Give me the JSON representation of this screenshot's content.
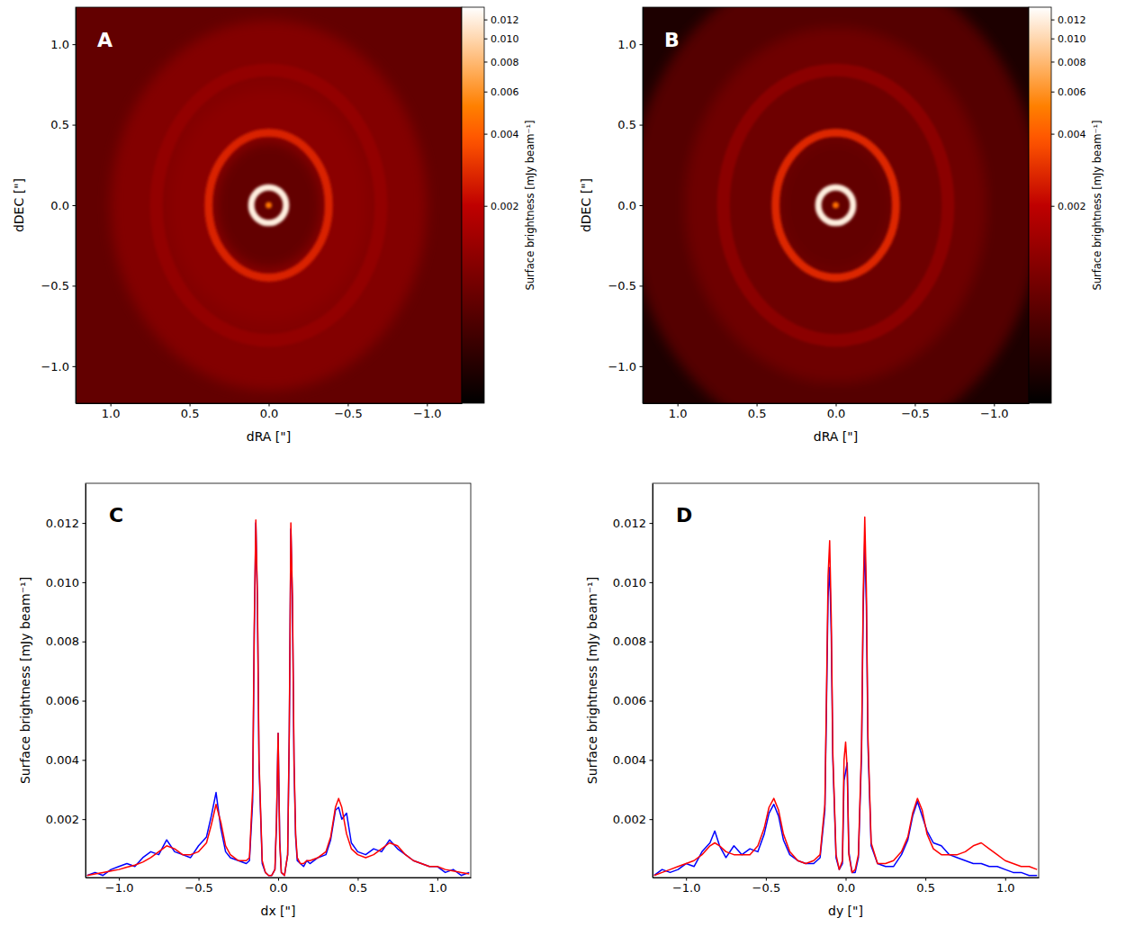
{
  "chart_data": [
    {
      "type": "heatmap",
      "title": "A",
      "xlabel": "dRA [\"]",
      "ylabel": "dDEC [\"]",
      "xlim": [
        1.22,
        -1.22
      ],
      "ylim": [
        -1.23,
        1.23
      ],
      "xticks": [
        {
          "value": 1,
          "label": "1.0"
        },
        {
          "value": 0.5,
          "label": "0.5"
        },
        {
          "value": 0,
          "label": "0.0"
        },
        {
          "value": -0.5,
          "label": "−0.5"
        },
        {
          "value": -1,
          "label": "−1.0"
        }
      ],
      "yticks": [
        {
          "value": -1,
          "label": "−1.0"
        },
        {
          "value": -0.5,
          "label": "−0.5"
        },
        {
          "value": 0,
          "label": "0.0"
        },
        {
          "value": 0.5,
          "label": "0.5"
        },
        {
          "value": 1,
          "label": "1.0"
        }
      ],
      "log": true,
      "clim": [
        0.0003,
        0.0135
      ],
      "cticks": [
        0.002,
        0.004,
        0.006,
        0.008,
        {
          "value": 0.01,
          "label": "0.010"
        },
        0.012
      ],
      "clabel": "Surface brightness [mJy beam⁻¹]",
      "background": 0.0008,
      "regions": [
        {
          "rx": 1.0,
          "ry": 1.15,
          "value": 0.0011
        },
        {
          "rx": 0.62,
          "ry": 0.72,
          "value": 0.0012
        },
        {
          "rx": 0.34,
          "ry": 0.4,
          "value": 0.0008
        }
      ],
      "rings": [
        {
          "rx": 0.71,
          "ry": 0.84,
          "width": 0.08,
          "value": 0.0013
        },
        {
          "rx": 0.38,
          "ry": 0.45,
          "width": 0.05,
          "value": 0.0026
        },
        {
          "rx": 0.11,
          "ry": 0.11,
          "width": 0.04,
          "value": 0.012
        }
      ],
      "center": {
        "r": 0.02,
        "value": 0.0049
      }
    },
    {
      "type": "heatmap",
      "title": "B",
      "xlabel": "dRA [\"]",
      "ylabel": "dDEC [\"]",
      "xlim": [
        1.22,
        -1.22
      ],
      "ylim": [
        -1.23,
        1.23
      ],
      "xticks": [
        {
          "value": 1,
          "label": "1.0"
        },
        {
          "value": 0.5,
          "label": "0.5"
        },
        {
          "value": 0,
          "label": "0.0"
        },
        {
          "value": -0.5,
          "label": "−0.5"
        },
        {
          "value": -1,
          "label": "−1.0"
        }
      ],
      "yticks": [
        {
          "value": -1,
          "label": "−1.0"
        },
        {
          "value": -0.5,
          "label": "−0.5"
        },
        {
          "value": 0,
          "label": "0.0"
        },
        {
          "value": 0.5,
          "label": "0.5"
        },
        {
          "value": 1,
          "label": "1.0"
        }
      ],
      "log": true,
      "clim": [
        0.0003,
        0.0135
      ],
      "cticks": [
        0.002,
        0.004,
        0.006,
        0.008,
        {
          "value": 0.01,
          "label": "0.010"
        },
        0.012
      ],
      "clabel": "Surface brightness [mJy beam⁻¹]",
      "background": 0.0004,
      "regions": [
        {
          "rx": 1.3,
          "ry": 1.5,
          "value": 0.0007
        },
        {
          "rx": 0.95,
          "ry": 1.1,
          "value": 0.0009
        },
        {
          "rx": 0.34,
          "ry": 0.4,
          "value": 0.0008
        }
      ],
      "rings": [
        {
          "rx": 0.71,
          "ry": 0.84,
          "width": 0.08,
          "value": 0.0012
        },
        {
          "rx": 0.38,
          "ry": 0.45,
          "width": 0.05,
          "value": 0.0027
        },
        {
          "rx": 0.11,
          "ry": 0.11,
          "width": 0.04,
          "value": 0.012
        }
      ],
      "center": {
        "r": 0.02,
        "value": 0.0046
      }
    },
    {
      "type": "line",
      "title": "C",
      "xlabel": "dx [\"]",
      "ylabel": "Surface brightness [mJy beam⁻¹]",
      "xlim": [
        -1.21,
        1.21
      ],
      "ylim": [
        3e-05,
        0.01334
      ],
      "xticks": [
        {
          "value": -1,
          "label": "−1.0"
        },
        {
          "value": -0.5,
          "label": "−0.5"
        },
        {
          "value": 0,
          "label": "0.0"
        },
        {
          "value": 0.5,
          "label": "0.5"
        },
        {
          "value": 1,
          "label": "1.0"
        }
      ],
      "yticks": [
        0.002,
        0.004,
        0.006,
        0.008,
        {
          "value": 0.01,
          "label": "0.010"
        },
        0.012
      ],
      "x": [
        -1.2,
        -1.15,
        -1.1,
        -1.05,
        -1.0,
        -0.95,
        -0.9,
        -0.85,
        -0.8,
        -0.75,
        -0.7,
        -0.65,
        -0.6,
        -0.55,
        -0.5,
        -0.45,
        -0.42,
        -0.39,
        -0.36,
        -0.33,
        -0.3,
        -0.25,
        -0.2,
        -0.18,
        -0.16,
        -0.15,
        -0.14,
        -0.13,
        -0.12,
        -0.1,
        -0.08,
        -0.06,
        -0.04,
        -0.02,
        -0.01,
        0,
        0.01,
        0.02,
        0.04,
        0.06,
        0.07,
        0.08,
        0.09,
        0.1,
        0.11,
        0.12,
        0.14,
        0.16,
        0.18,
        0.2,
        0.25,
        0.3,
        0.33,
        0.36,
        0.38,
        0.4,
        0.43,
        0.46,
        0.5,
        0.55,
        0.6,
        0.65,
        0.7,
        0.75,
        0.8,
        0.85,
        0.9,
        0.95,
        1.0,
        1.05,
        1.1,
        1.15,
        1.2
      ],
      "series": [
        {
          "color": "#0000ff",
          "values": [
            0.0001,
            0.0002,
            0.0001,
            0.0003,
            0.0004,
            0.0005,
            0.0004,
            0.0007,
            0.0009,
            0.0008,
            0.0013,
            0.0009,
            0.0008,
            0.0007,
            0.0011,
            0.0014,
            0.0021,
            0.0029,
            0.0017,
            0.0009,
            0.0007,
            0.0006,
            0.0005,
            0.0006,
            0.0026,
            0.0082,
            0.012,
            0.0093,
            0.0038,
            0.0005,
            0.0002,
            0.0001,
            0.0001,
            0.0003,
            0.0019,
            0.0049,
            0.0013,
            0.0002,
            0.0001,
            0.0008,
            0.0048,
            0.0118,
            0.0093,
            0.0038,
            0.0014,
            0.0006,
            0.0005,
            0.0004,
            0.0006,
            0.0005,
            0.0007,
            0.0008,
            0.0013,
            0.0023,
            0.0024,
            0.002,
            0.0022,
            0.0012,
            0.0009,
            0.0008,
            0.001,
            0.0009,
            0.0013,
            0.001,
            0.0008,
            0.0006,
            0.0005,
            0.0004,
            0.0004,
            0.0002,
            0.0003,
            0.0001,
            0.0002
          ]
        },
        {
          "color": "#ff0000",
          "values": [
            0.0001,
            0.00015,
            0.0002,
            0.00025,
            0.0003,
            0.00038,
            0.00045,
            0.00055,
            0.0007,
            0.0009,
            0.0011,
            0.001,
            0.0008,
            0.0008,
            0.0009,
            0.0012,
            0.0018,
            0.0025,
            0.0019,
            0.0011,
            0.0008,
            0.0006,
            0.0006,
            0.0007,
            0.003,
            0.0085,
            0.0121,
            0.0095,
            0.004,
            0.0006,
            0.0002,
            0.0001,
            0.0001,
            0.0003,
            0.002,
            0.0049,
            0.0012,
            0.0002,
            0.0001,
            0.0008,
            0.005,
            0.012,
            0.0095,
            0.004,
            0.0015,
            0.0007,
            0.0005,
            0.0005,
            0.0006,
            0.0006,
            0.0007,
            0.0009,
            0.0014,
            0.0024,
            0.0027,
            0.0024,
            0.0015,
            0.001,
            0.0008,
            0.0007,
            0.0008,
            0.001,
            0.0012,
            0.0011,
            0.0008,
            0.0006,
            0.0005,
            0.0004,
            0.0004,
            0.0003,
            0.00025,
            0.0002,
            0.00015
          ]
        }
      ]
    },
    {
      "type": "line",
      "title": "D",
      "xlabel": "dy [\"]",
      "ylabel": "Surface brightness [mJy beam⁻¹]",
      "xlim": [
        -1.21,
        1.21
      ],
      "ylim": [
        3e-05,
        0.01334
      ],
      "xticks": [
        {
          "value": -1,
          "label": "−1.0"
        },
        {
          "value": -0.5,
          "label": "−0.5"
        },
        {
          "value": 0,
          "label": "0.0"
        },
        {
          "value": 0.5,
          "label": "0.5"
        },
        {
          "value": 1,
          "label": "1.0"
        }
      ],
      "yticks": [
        0.002,
        0.004,
        0.006,
        0.008,
        {
          "value": 0.01,
          "label": "0.010"
        },
        0.012
      ],
      "x": [
        -1.2,
        -1.15,
        -1.1,
        -1.05,
        -1.0,
        -0.95,
        -0.9,
        -0.85,
        -0.82,
        -0.79,
        -0.75,
        -0.7,
        -0.65,
        -0.6,
        -0.55,
        -0.51,
        -0.48,
        -0.45,
        -0.42,
        -0.39,
        -0.35,
        -0.3,
        -0.25,
        -0.2,
        -0.16,
        -0.13,
        -0.12,
        -0.11,
        -0.1,
        -0.09,
        -0.08,
        -0.06,
        -0.04,
        -0.02,
        -0.01,
        0,
        0.01,
        0.02,
        0.04,
        0.06,
        0.08,
        0.1,
        0.11,
        0.12,
        0.13,
        0.14,
        0.16,
        0.2,
        0.25,
        0.3,
        0.35,
        0.39,
        0.42,
        0.45,
        0.48,
        0.51,
        0.55,
        0.6,
        0.65,
        0.7,
        0.75,
        0.8,
        0.85,
        0.9,
        0.95,
        1.0,
        1.05,
        1.1,
        1.15,
        1.2
      ],
      "series": [
        {
          "color": "#0000ff",
          "values": [
            0.0001,
            0.0003,
            0.0002,
            0.0003,
            0.0005,
            0.0004,
            0.0009,
            0.0012,
            0.0016,
            0.0011,
            0.0007,
            0.0011,
            0.0008,
            0.001,
            0.0009,
            0.0015,
            0.0022,
            0.0025,
            0.0021,
            0.0013,
            0.0008,
            0.0006,
            0.0005,
            0.0005,
            0.0007,
            0.0023,
            0.0058,
            0.0095,
            0.0105,
            0.0082,
            0.004,
            0.0007,
            0.0003,
            0.0005,
            0.0033,
            0.0036,
            0.0039,
            0.0009,
            0.0002,
            0.0002,
            0.0007,
            0.0042,
            0.009,
            0.0114,
            0.0092,
            0.0045,
            0.0011,
            0.0005,
            0.0004,
            0.0004,
            0.0008,
            0.0013,
            0.0021,
            0.0026,
            0.0021,
            0.0016,
            0.0012,
            0.0011,
            0.0008,
            0.0007,
            0.0006,
            0.0005,
            0.0005,
            0.0004,
            0.0004,
            0.0003,
            0.0002,
            0.0002,
            0.0001,
            0.0001
          ]
        },
        {
          "color": "#ff0000",
          "values": [
            0.0001,
            0.0002,
            0.0003,
            0.0004,
            0.0005,
            0.0006,
            0.0008,
            0.0011,
            0.0012,
            0.0011,
            0.0009,
            0.0008,
            0.0008,
            0.0008,
            0.0011,
            0.0017,
            0.0024,
            0.0027,
            0.0023,
            0.0015,
            0.0009,
            0.0006,
            0.0005,
            0.0006,
            0.0008,
            0.0025,
            0.0062,
            0.0102,
            0.0114,
            0.0088,
            0.0042,
            0.0008,
            0.0003,
            0.0006,
            0.004,
            0.0046,
            0.0037,
            0.0008,
            0.0002,
            0.0003,
            0.0008,
            0.0045,
            0.0095,
            0.0122,
            0.0098,
            0.0048,
            0.0012,
            0.0005,
            0.0005,
            0.0006,
            0.0009,
            0.0014,
            0.0022,
            0.0027,
            0.0023,
            0.0015,
            0.001,
            0.0008,
            0.0008,
            0.0008,
            0.0009,
            0.0011,
            0.0012,
            0.001,
            0.0008,
            0.0006,
            0.0005,
            0.0004,
            0.0004,
            0.0003
          ]
        }
      ]
    }
  ]
}
